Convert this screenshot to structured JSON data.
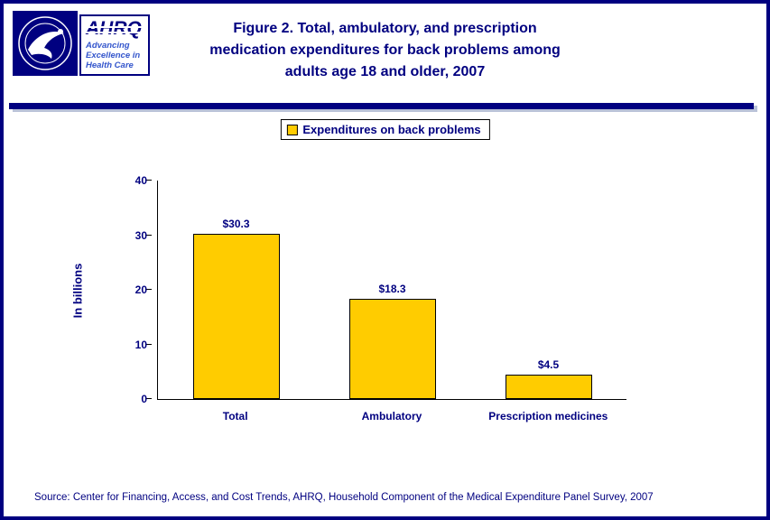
{
  "colors": {
    "navy": "#000080",
    "bar_gold": "#FFCC00",
    "tagline_blue": "#3355CC"
  },
  "header": {
    "hhs_logo": "hhs-seal-icon",
    "ahrq": {
      "acronym": "AHRQ",
      "tagline_lines": [
        "Advancing",
        "Excellence in",
        "Health Care"
      ]
    },
    "title_lines": [
      "Figure 2. Total, ambulatory, and prescription",
      "medication expenditures for back problems among",
      "adults age 18 and older, 2007"
    ]
  },
  "legend": {
    "label": "Expenditures on back problems"
  },
  "chart_data": {
    "type": "bar",
    "categories": [
      "Total",
      "Ambulatory",
      "Prescription medicines"
    ],
    "values": [
      30.3,
      18.3,
      4.5
    ],
    "value_labels": [
      "$30.3",
      "$18.3",
      "$4.5"
    ],
    "title": "Figure 2. Total, ambulatory, and prescription medication expenditures for back problems among adults age 18 and older, 2007",
    "xlabel": "",
    "ylabel": "In billions",
    "ylim": [
      0,
      40
    ],
    "yticks": [
      0,
      10,
      20,
      30,
      40
    ],
    "bar_color": "#FFCC00",
    "grid": false,
    "legend_entries": [
      "Expenditures on back problems"
    ],
    "legend_position": "top-center"
  },
  "source": "Source: Center for Financing, Access, and Cost Trends, AHRQ, Household Component of the Medical Expenditure Panel Survey, 2007"
}
